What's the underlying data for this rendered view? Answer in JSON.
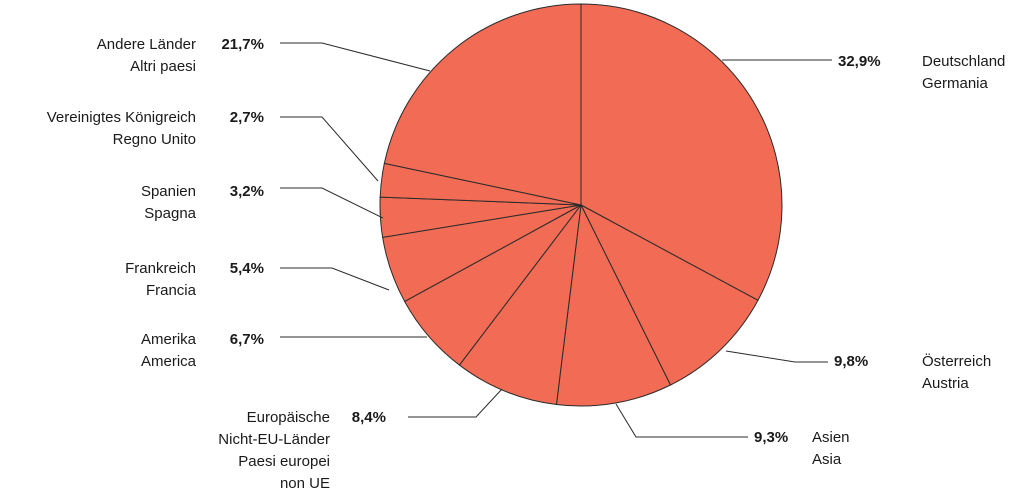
{
  "chart_data": {
    "type": "pie",
    "title": "",
    "slice_color": "#f26b55",
    "line_color": "#2b2b2b",
    "slices": [
      {
        "value": 32.9,
        "label": "32,9%",
        "name_lines": [
          "Deutschland",
          "Germania"
        ]
      },
      {
        "value": 9.8,
        "label": "9,8%",
        "name_lines": [
          "Österreich",
          "Austria"
        ]
      },
      {
        "value": 9.3,
        "label": "9,3%",
        "name_lines": [
          "Asien",
          "Asia"
        ]
      },
      {
        "value": 8.4,
        "label": "8,4%",
        "name_lines": [
          "Europäische",
          "Nicht-EU-Länder",
          "Paesi europei",
          "non UE"
        ]
      },
      {
        "value": 6.7,
        "label": "6,7%",
        "name_lines": [
          "Amerika",
          "America"
        ]
      },
      {
        "value": 5.4,
        "label": "5,4%",
        "name_lines": [
          "Frankreich",
          "Francia"
        ]
      },
      {
        "value": 3.2,
        "label": "3,2%",
        "name_lines": [
          "Spanien",
          "Spagna"
        ]
      },
      {
        "value": 2.7,
        "label": "2,7%",
        "name_lines": [
          "Vereinigtes Königreich",
          "Regno Unito"
        ]
      },
      {
        "value": 21.7,
        "label": "21,7%",
        "name_lines": [
          "Andere Länder",
          "Altri paesi"
        ]
      }
    ]
  }
}
